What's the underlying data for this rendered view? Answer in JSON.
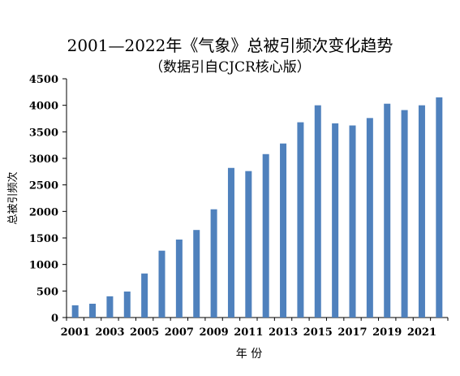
{
  "chart_data": {
    "type": "bar",
    "title": "2001—2022年《气象》总被引频次变化趋势",
    "subtitle": "（数据引自CJCR核心版）",
    "xlabel": "年 份",
    "ylabel": "总被引频次",
    "ylim": [
      0,
      4500
    ],
    "yticks": [
      0,
      500,
      1000,
      1500,
      2000,
      2500,
      3000,
      3500,
      4000,
      4500
    ],
    "xtick_labels": [
      "2001",
      "2003",
      "2005",
      "2007",
      "2009",
      "2011",
      "2013",
      "2015",
      "2017",
      "2019",
      "2021"
    ],
    "categories": [
      "2001",
      "2002",
      "2003",
      "2004",
      "2005",
      "2006",
      "2007",
      "2008",
      "2009",
      "2010",
      "2011",
      "2012",
      "2013",
      "2014",
      "2015",
      "2016",
      "2017",
      "2018",
      "2019",
      "2020",
      "2021",
      "2022"
    ],
    "values": [
      230,
      260,
      400,
      490,
      830,
      1260,
      1470,
      1650,
      2040,
      2820,
      2760,
      3080,
      3280,
      3680,
      4000,
      3660,
      3620,
      3760,
      4030,
      3910,
      4000,
      4150
    ],
    "bar_color": "#4f81bd",
    "grid": false,
    "legend": "none"
  }
}
